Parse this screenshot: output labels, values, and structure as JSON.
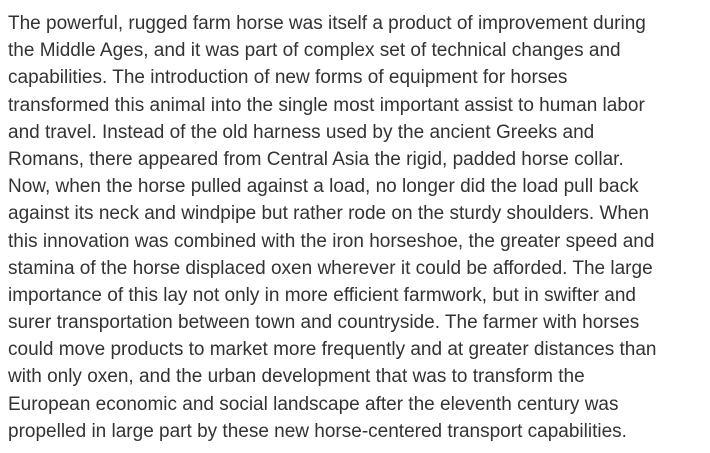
{
  "passage": {
    "lines": [
      "The powerful, rugged farm horse was itself a product of improvement during",
      "the Middle Ages, and it was part of complex set of technical changes and",
      "capabilities. The introduction of new forms of equipment for horses",
      "transformed this animal into the single most important assist to human labor",
      "and travel. Instead of the old harness used by the ancient Greeks and",
      "Romans, there appeared from Central Asia the rigid, padded horse collar.",
      "Now, when the horse pulled against a load, no longer did the load pull back",
      "against its neck and windpipe but rather rode on the sturdy shoulders. When",
      "this innovation was combined with the iron horseshoe, the greater speed and",
      "stamina of the horse displaced oxen wherever it could be afforded. The large",
      "importance of this lay not only in more efficient farmwork, but in swifter and",
      "surer transportation between town and countryside. The farmer with horses",
      "could move products to market more frequently and at greater distances than",
      "with only oxen, and the urban development that was to transform the",
      "European economic and social landscape after the eleventh century was",
      "propelled in large part by these new horse-centered transport capabilities."
    ]
  }
}
